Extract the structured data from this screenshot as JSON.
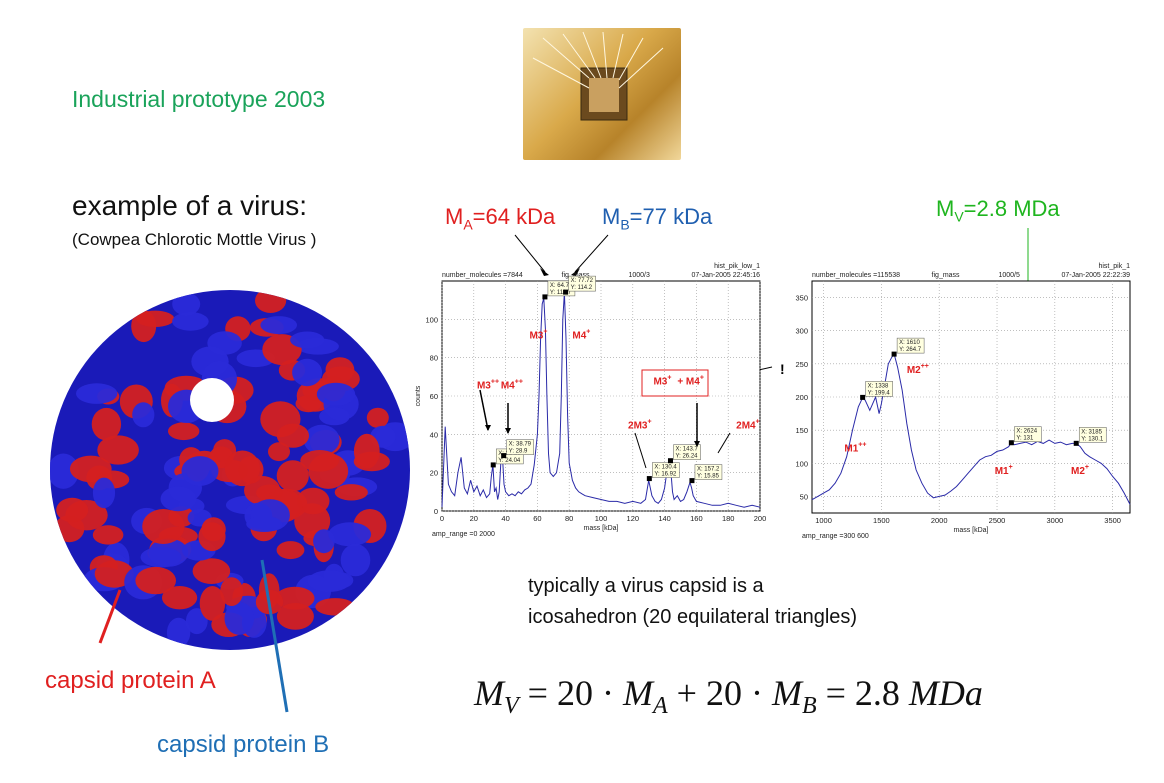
{
  "header": {
    "prototype": "Industrial prototype 2003",
    "virus_title": "example of a virus:",
    "virus_subtitle": "(Cowpea Chlorotic Mottle Virus )"
  },
  "labels": {
    "ma": {
      "base": "M",
      "sub": "A",
      "rest": "=64 kDa"
    },
    "mb": {
      "base": "M",
      "sub": "B",
      "rest": "=77 kDa"
    },
    "mv": {
      "base": "M",
      "sub": "V",
      "rest": "=2.8 MDa"
    },
    "capsid_a": "capsid protein A",
    "capsid_b": "capsid protein B",
    "exclaim": "!"
  },
  "text": {
    "typically_line1": "typically a virus capsid is a",
    "typically_line2": "icosahedron (20 equilateral triangles)"
  },
  "formula": {
    "MV": "M",
    "V": "V",
    "eq1": " = 20 · ",
    "MA": "M",
    "A": "A",
    "plus": " + 20 · ",
    "MB": "M",
    "B": "B",
    "eq2": " = 2.8 ",
    "unit": "MDa"
  },
  "colors": {
    "red": "#e02020",
    "blue": "#1f5fb0",
    "green": "#1fb51f",
    "line": "#2a2aa8"
  },
  "chart_data": [
    {
      "type": "line",
      "header_left": "number_molecules =7844",
      "header_mid": "fig_mass",
      "header_mid2": "1000/3",
      "header_right1": "hist_pik_low_1",
      "header_right2": "07-Jan-2005 22:45:16",
      "footer_left": "amp_range =0  2000",
      "xlabel": "mass [kDa]",
      "ylabel": "counts",
      "xlim": [
        0,
        200
      ],
      "ylim": [
        0,
        120
      ],
      "xticks": [
        0,
        20,
        40,
        60,
        80,
        100,
        120,
        140,
        160,
        180,
        200
      ],
      "yticks": [
        0,
        20,
        40,
        60,
        80,
        100
      ],
      "series": [
        {
          "x": [
            0,
            2,
            4,
            6,
            8,
            10,
            12,
            14,
            16,
            18,
            20,
            22,
            24,
            26,
            28,
            30,
            31,
            32,
            33,
            34,
            35,
            36,
            37,
            38,
            39,
            40,
            42,
            44,
            46,
            48,
            50,
            52,
            54,
            56,
            58,
            60,
            61,
            62,
            63,
            64,
            65,
            66,
            67,
            68,
            70,
            72,
            74,
            75,
            76,
            77,
            78,
            79,
            80,
            82,
            84,
            86,
            88,
            90,
            95,
            100,
            105,
            110,
            115,
            120,
            125,
            128,
            130,
            132,
            134,
            136,
            138,
            140,
            141,
            142,
            143,
            144,
            145,
            146,
            148,
            150,
            152,
            154,
            156,
            157,
            158,
            160,
            165,
            170,
            175,
            180,
            185,
            190,
            195,
            200
          ],
          "y": [
            2,
            44,
            14,
            10,
            8,
            20,
            28,
            12,
            9,
            16,
            10,
            13,
            8,
            11,
            7,
            9,
            18,
            24,
            10,
            12,
            6,
            10,
            25,
            29,
            14,
            10,
            8,
            9,
            8,
            10,
            9,
            11,
            12,
            14,
            24,
            40,
            60,
            90,
            108,
            111,
            95,
            60,
            30,
            20,
            18,
            20,
            30,
            60,
            100,
            114,
            90,
            50,
            25,
            16,
            12,
            10,
            9,
            8,
            7,
            6,
            5,
            5,
            4,
            5,
            4,
            6,
            16,
            8,
            5,
            4,
            6,
            12,
            18,
            22,
            26,
            20,
            10,
            6,
            8,
            5,
            6,
            10,
            15,
            12,
            8,
            5,
            4,
            3,
            3,
            4,
            3,
            2,
            3,
            2
          ]
        }
      ],
      "tooltips": [
        {
          "x": 32.23,
          "y": 24.04,
          "X": "X: 32.23",
          "Y": "Y: 24.04"
        },
        {
          "x": 38.79,
          "y": 28.9,
          "X": "X: 38.79",
          "Y": "Y: 28.9"
        },
        {
          "x": 64.73,
          "y": 111.7,
          "X": "X: 64.73",
          "Y": "Y: 111.7"
        },
        {
          "x": 77.72,
          "y": 114.2,
          "X": "X: 77.72",
          "Y": "Y: 114.2"
        },
        {
          "x": 130.4,
          "y": 16.92,
          "X": "X: 130.4",
          "Y": "Y: 16.92"
        },
        {
          "x": 143.7,
          "y": 26.24,
          "X": "X: 143.7",
          "Y": "Y: 26.24"
        },
        {
          "x": 157.2,
          "y": 15.85,
          "X": "X: 157.2",
          "Y": "Y: 15.85"
        }
      ],
      "peaks": [
        {
          "label": "M3",
          "sup": "+",
          "x": 55,
          "y": 90
        },
        {
          "label": "M4",
          "sup": "+",
          "x": 82,
          "y": 90
        },
        {
          "label": "M3",
          "sup": "++",
          "x": 22,
          "y": 64
        },
        {
          "label": "M4",
          "sup": "++",
          "x": 37,
          "y": 64
        },
        {
          "label": "2M3",
          "sup": "+",
          "x": 117,
          "y": 43
        },
        {
          "label": "M3",
          "sup": "+",
          "x": 133,
          "y": 66
        },
        {
          "label": "+ M4",
          "sup": "+",
          "x": 148,
          "y": 66
        },
        {
          "label": "2M4",
          "sup": "+",
          "x": 185,
          "y": 43
        }
      ]
    },
    {
      "type": "line",
      "header_left": "number_molecules =115538",
      "header_mid": "fig_mass",
      "header_mid2": "1000/5",
      "header_right1": "hist_pik_1",
      "header_right2": "07-Jan-2005 22:22:39",
      "footer_left": "amp_range =300  600",
      "xlabel": "mass [kDa]",
      "ylabel": "",
      "xlim": [
        900,
        3650
      ],
      "ylim": [
        25,
        375
      ],
      "xticks": [
        1000,
        1500,
        2000,
        2500,
        3000,
        3500
      ],
      "yticks": [
        50,
        100,
        150,
        200,
        250,
        300,
        350
      ],
      "series": [
        {
          "x": [
            900,
            950,
            1000,
            1050,
            1100,
            1150,
            1200,
            1250,
            1300,
            1338,
            1360,
            1400,
            1450,
            1480,
            1500,
            1530,
            1560,
            1590,
            1610,
            1640,
            1680,
            1720,
            1760,
            1800,
            1850,
            1900,
            1950,
            2000,
            2050,
            2100,
            2150,
            2200,
            2250,
            2300,
            2350,
            2400,
            2450,
            2500,
            2550,
            2600,
            2624,
            2650,
            2700,
            2750,
            2800,
            2850,
            2900,
            2950,
            3000,
            3050,
            3100,
            3150,
            3185,
            3220,
            3260,
            3300,
            3350,
            3400,
            3450,
            3500,
            3550,
            3600,
            3650
          ],
          "y": [
            45,
            50,
            55,
            60,
            70,
            85,
            110,
            150,
            185,
            199,
            195,
            180,
            200,
            175,
            190,
            220,
            250,
            260,
            265,
            245,
            210,
            160,
            120,
            90,
            70,
            55,
            48,
            50,
            52,
            58,
            65,
            75,
            85,
            95,
            105,
            110,
            112,
            118,
            120,
            125,
            131,
            128,
            130,
            132,
            128,
            133,
            130,
            135,
            130,
            132,
            128,
            130,
            130,
            125,
            115,
            110,
            105,
            100,
            92,
            80,
            70,
            55,
            38
          ]
        }
      ],
      "tooltips": [
        {
          "x": 1338,
          "y": 199.4,
          "X": "X: 1338",
          "Y": "Y: 199.4"
        },
        {
          "x": 1610,
          "y": 264.7,
          "X": "X: 1610",
          "Y": "Y: 264.7"
        },
        {
          "x": 2624,
          "y": 131,
          "X": "X: 2624",
          "Y": "Y: 131"
        },
        {
          "x": 3185,
          "y": 130.1,
          "X": "X: 3185",
          "Y": "Y: 130.1"
        }
      ],
      "peaks": [
        {
          "label": "M1",
          "sup": "++",
          "x": 1180,
          "y": 118
        },
        {
          "label": "M2",
          "sup": "++",
          "x": 1720,
          "y": 236
        },
        {
          "label": "M1",
          "sup": "+",
          "x": 2480,
          "y": 84
        },
        {
          "label": "M2",
          "sup": "+",
          "x": 3140,
          "y": 84
        }
      ]
    }
  ]
}
